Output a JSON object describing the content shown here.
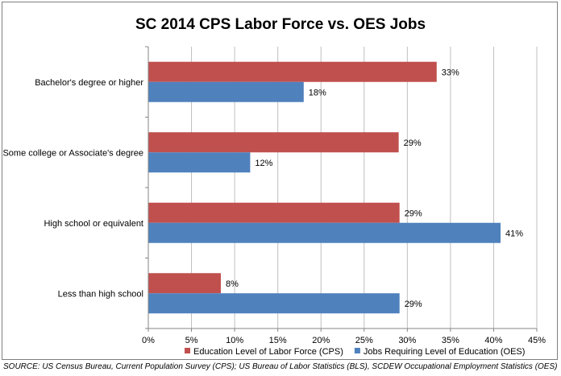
{
  "chart_data": {
    "type": "bar",
    "orientation": "horizontal",
    "title": "SC 2014 CPS Labor Force vs. OES Jobs",
    "categories": [
      "Bachelor's degree or higher",
      "Some college or Associate's degree",
      "High school or equivalent",
      "Less than high school"
    ],
    "series": [
      {
        "name": "Education Level of Labor Force (CPS)",
        "color": "#c0504d",
        "values": [
          33.4,
          29.0,
          29.1,
          8.4
        ],
        "labels": [
          "33%",
          "29%",
          "29%",
          "8%"
        ]
      },
      {
        "name": "Jobs Requiring Level of Education (OES)",
        "color": "#4f81bd",
        "values": [
          18.0,
          11.8,
          40.8,
          29.1
        ],
        "labels": [
          "18%",
          "12%",
          "41%",
          "29%"
        ]
      }
    ],
    "xlim": [
      0,
      45
    ],
    "xticks": [
      0,
      5,
      10,
      15,
      20,
      25,
      30,
      35,
      40,
      45
    ],
    "xtick_labels": [
      "0%",
      "5%",
      "10%",
      "15%",
      "20%",
      "25%",
      "30%",
      "35%",
      "40%",
      "45%"
    ],
    "grid": true,
    "legend_position": "bottom"
  },
  "source_text": "SOURCE: US Census Bureau, Current Population Survey (CPS); US Bureau of Labor Statistics (BLS), SCDEW Occupational Employment Statistics (OES)"
}
